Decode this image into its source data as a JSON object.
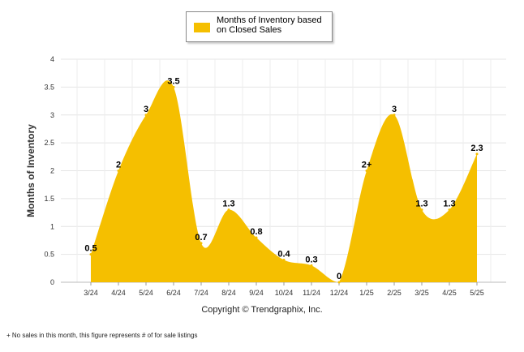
{
  "chart_data": {
    "type": "area",
    "legend": "Months of Inventory based on Closed Sales",
    "legend_position": "top-center",
    "ylabel": "Months of Inventory",
    "xlabel": "",
    "ylim": [
      0,
      4
    ],
    "yticks": [
      "0",
      "0.5",
      "1",
      "1.5",
      "2",
      "2.5",
      "3",
      "3.5",
      "4"
    ],
    "grid": true,
    "categories": [
      "3/24",
      "4/24",
      "5/24",
      "6/24",
      "7/24",
      "8/24",
      "9/24",
      "10/24",
      "11/24",
      "12/24",
      "1/25",
      "2/25",
      "3/25",
      "4/25",
      "5/25"
    ],
    "values": [
      0.5,
      2,
      3,
      3.5,
      0.7,
      1.3,
      0.8,
      0.4,
      0.3,
      0,
      2,
      3,
      1.3,
      1.3,
      2.3
    ],
    "data_labels": [
      "0.5",
      "2",
      "3",
      "3.5",
      "0.7",
      "1.3",
      "0.8",
      "0.4",
      "0.3",
      "0",
      "2+",
      "3",
      "1.3",
      "1.3",
      "2.3"
    ],
    "fill_color": "#F5BF00"
  },
  "copyright": "Copyright © Trendgraphix, Inc.",
  "footnote": "+ No sales in this month, this figure represents # of for sale listings"
}
